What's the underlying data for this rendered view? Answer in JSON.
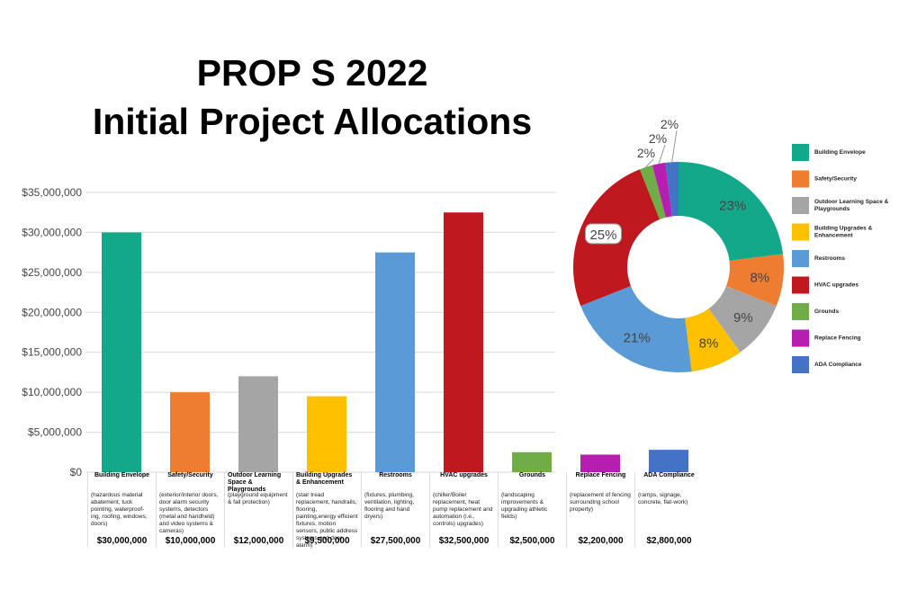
{
  "chart_data": [
    {
      "type": "bar",
      "title": "PROP S 2022",
      "subtitle": "Initial Project Allocations",
      "categories": [
        "Building Envelope",
        "Safety/Security",
        "Outdoor Learning Space & Playgrounds",
        "Building Upgrades & Enhancement",
        "Restrooms",
        "HVAC upgrades",
        "Grounds",
        "Replace Fencing",
        "ADA Compliance"
      ],
      "descriptions": [
        "(hazardous material abatement, tuck pointing, waterproof-ing, roofing, windows, doors)",
        "(exterior/interior doors, door alarm security systems, detectors (metal and handheld) and video systems & cameras)",
        "(playground equipment & fall protection)",
        "(stair tread replacement, handrails, flooring, painting,energy efficient fixtures, motion sensors, public address systems and door alarm)",
        "(fixtures, plumbing, ventilation, lighting, flooring and hand dryers)",
        "(chiller/Boiler replacement, heat pump replacement and automation (i.e., controls) upgrades)",
        "(landscaping improvements & upgrading athletic fields)",
        "(replacement of fencing surrounding school property)",
        "(ramps, signage, concrete, flat-work)"
      ],
      "values": [
        30000000,
        10000000,
        12000000,
        9500000,
        27500000,
        32500000,
        2500000,
        2200000,
        2800000
      ],
      "value_labels": [
        "$30,000,000",
        "$10,000,000",
        "$12,000,000",
        "$9,500,000",
        "$27,500,000",
        "$32,500,000",
        "$2,500,000",
        "$2,200,000",
        "$2,800,000"
      ],
      "colors": [
        "#13a88a",
        "#ee7d31",
        "#a5a5a5",
        "#ffc000",
        "#5b9bd5",
        "#c0181f",
        "#70ad47",
        "#b61eb0",
        "#4472c4"
      ],
      "ylim": [
        0,
        35000000
      ],
      "yticks": [
        {
          "value": 0,
          "label": "$0"
        },
        {
          "value": 5000000,
          "label": "$5,000,000"
        },
        {
          "value": 10000000,
          "label": "$10,000,000"
        },
        {
          "value": 15000000,
          "label": "$15,000,000"
        },
        {
          "value": 20000000,
          "label": "$20,000,000"
        },
        {
          "value": 25000000,
          "label": "$25,000,000"
        },
        {
          "value": 30000000,
          "label": "$30,000,000"
        },
        {
          "value": 35000000,
          "label": "$35,000,000"
        }
      ],
      "grid": true
    },
    {
      "type": "donut",
      "categories": [
        "Building Envelope",
        "Safety/Security",
        "Outdoor Learning Space & Playgrounds",
        "Building Upgrades & Enhancement",
        "Restrooms",
        "HVAC upgrades",
        "Grounds",
        "Replace Fencing",
        "ADA Compliance"
      ],
      "values": [
        23,
        8,
        9,
        8,
        21,
        25,
        2,
        2,
        2
      ],
      "value_labels": [
        "23%",
        "8%",
        "9%",
        "8%",
        "21%",
        "25%",
        "2%",
        "2%",
        "2%"
      ],
      "colors": [
        "#13a88a",
        "#ee7d31",
        "#a5a5a5",
        "#ffc000",
        "#5b9bd5",
        "#c0181f",
        "#70ad47",
        "#b61eb0",
        "#4472c4"
      ],
      "legend": "right"
    }
  ]
}
